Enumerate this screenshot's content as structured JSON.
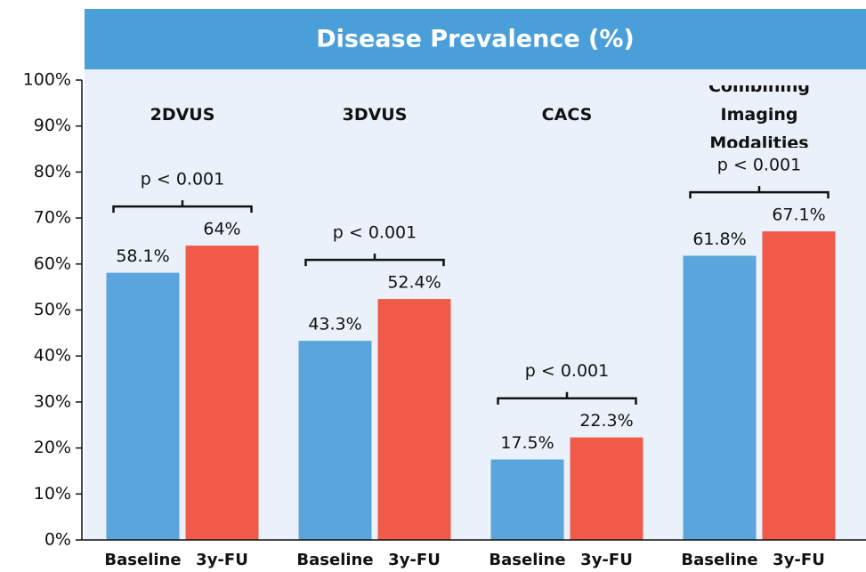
{
  "chart_data": {
    "type": "bar",
    "title": "Disease Prevalence (%)",
    "categories": [
      "2DVUS",
      "3DVUS",
      "CACS",
      "Combining Imaging Modalities"
    ],
    "series": [
      {
        "name": "Baseline",
        "color": "#5aa5dc",
        "values": [
          58.1,
          43.3,
          17.5,
          61.8
        ],
        "value_labels": [
          "58.1%",
          "43.3%",
          "17.5%",
          "61.8%"
        ]
      },
      {
        "name": "3y-FU",
        "color": "#ef5b48",
        "values": [
          64,
          52.4,
          22.3,
          67.1
        ],
        "value_labels": [
          "64%",
          "52.4%",
          "22.3%",
          "67.1%"
        ]
      }
    ],
    "annotations": [
      "p < 0.001",
      "p < 0.001",
      "p < 0.001",
      "p < 0.001"
    ],
    "ylim": [
      0,
      100
    ],
    "yticks": [
      {
        "value": 0,
        "label": "0%"
      },
      {
        "value": 10,
        "label": "10%"
      },
      {
        "value": 20,
        "label": "20%"
      },
      {
        "value": 30,
        "label": "30%"
      },
      {
        "value": 40,
        "label": "40%"
      },
      {
        "value": 50,
        "label": "50%"
      },
      {
        "value": 60,
        "label": "60%"
      },
      {
        "value": 70,
        "label": "70%"
      },
      {
        "value": 80,
        "label": "80%"
      },
      {
        "value": 90,
        "label": "90%"
      },
      {
        "value": 100,
        "label": "100%"
      }
    ]
  }
}
